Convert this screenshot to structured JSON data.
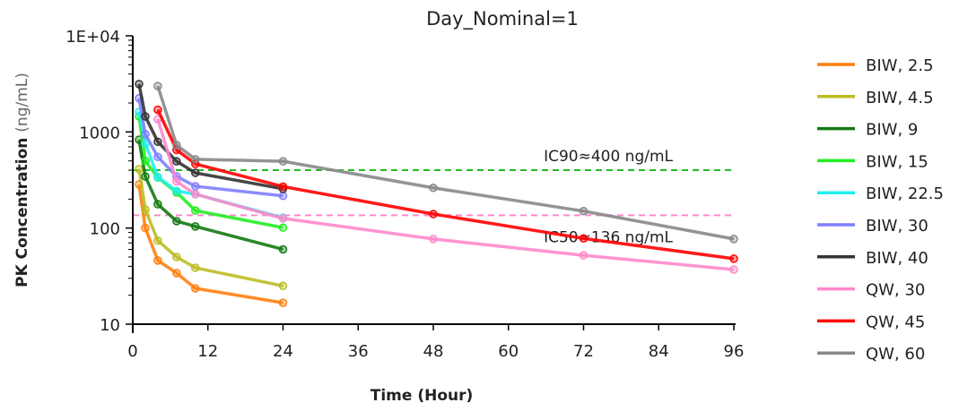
{
  "chart_data": {
    "type": "line",
    "title": "Day_Nominal=1",
    "xlabel": "Time (Hour)",
    "ylabel_main": "PK Concentration",
    "ylabel_unit": "(ng/mL)",
    "xlim": [
      0,
      96
    ],
    "ylim": [
      10,
      10000
    ],
    "yscale": "log",
    "xticks": [
      0,
      12,
      24,
      36,
      48,
      60,
      72,
      84,
      96
    ],
    "xtick_labels": [
      "0",
      "12",
      "24",
      "36",
      "48",
      "60",
      "72",
      "84",
      "96"
    ],
    "yticks": [
      10,
      100,
      1000,
      10000
    ],
    "ytick_labels": [
      "10",
      "100",
      "1000",
      "1E+04"
    ],
    "legend_position": "right",
    "reference_lines": [
      {
        "label": "IC90≈400 ng/mL",
        "value": 400,
        "color": "#22bb22"
      },
      {
        "label": "IC50≈136 ng/mL",
        "value": 136,
        "color": "#ff88cc"
      }
    ],
    "series": [
      {
        "name": "BIW, 2.5",
        "color": "#ff7f0e",
        "x": [
          1,
          2,
          4,
          7,
          10,
          24
        ],
        "y": [
          284,
          100,
          46,
          34,
          23.6,
          16.7
        ]
      },
      {
        "name": "BIW, 4.5",
        "color": "#bcbd22",
        "x": [
          1,
          2,
          4,
          7,
          10,
          24
        ],
        "y": [
          410,
          156,
          74,
          50,
          38.6,
          25
        ]
      },
      {
        "name": "BIW, 9",
        "color": "#137a13",
        "x": [
          1,
          2,
          4,
          7,
          10,
          24
        ],
        "y": [
          830,
          345,
          177,
          118,
          104,
          60
        ]
      },
      {
        "name": "BIW, 15",
        "color": "#22ee22",
        "x": [
          1,
          2,
          4,
          7,
          10,
          24
        ],
        "y": [
          1450,
          500,
          335,
          235,
          152,
          101
        ]
      },
      {
        "name": "BIW, 22.5",
        "color": "#22eeee",
        "x": [
          1,
          2,
          4,
          7,
          10,
          24
        ],
        "y": [
          1620,
          760,
          340,
          243,
          225,
          128
        ]
      },
      {
        "name": "BIW, 30",
        "color": "#7f7fff",
        "x": [
          1,
          2,
          4,
          7,
          10,
          24
        ],
        "y": [
          2240,
          950,
          550,
          345,
          272,
          216
        ]
      },
      {
        "name": "BIW, 40",
        "color": "#333333",
        "x": [
          1,
          2,
          4,
          7,
          10,
          24
        ],
        "y": [
          3150,
          1450,
          790,
          495,
          375,
          256
        ]
      },
      {
        "name": "QW, 30",
        "color": "#ff88cc",
        "x": [
          4,
          7,
          10,
          24,
          48,
          72,
          96
        ],
        "y": [
          1360,
          305,
          225,
          126,
          77,
          52,
          37
        ]
      },
      {
        "name": "QW, 45",
        "color": "#ff0000",
        "x": [
          4,
          7,
          10,
          24,
          48,
          72,
          96
        ],
        "y": [
          1700,
          650,
          465,
          270,
          140,
          78,
          48
        ]
      },
      {
        "name": "QW, 60",
        "color": "#888888",
        "x": [
          4,
          7,
          10,
          24,
          48,
          72,
          96
        ],
        "y": [
          3000,
          730,
          520,
          495,
          262,
          150,
          77
        ]
      }
    ]
  }
}
